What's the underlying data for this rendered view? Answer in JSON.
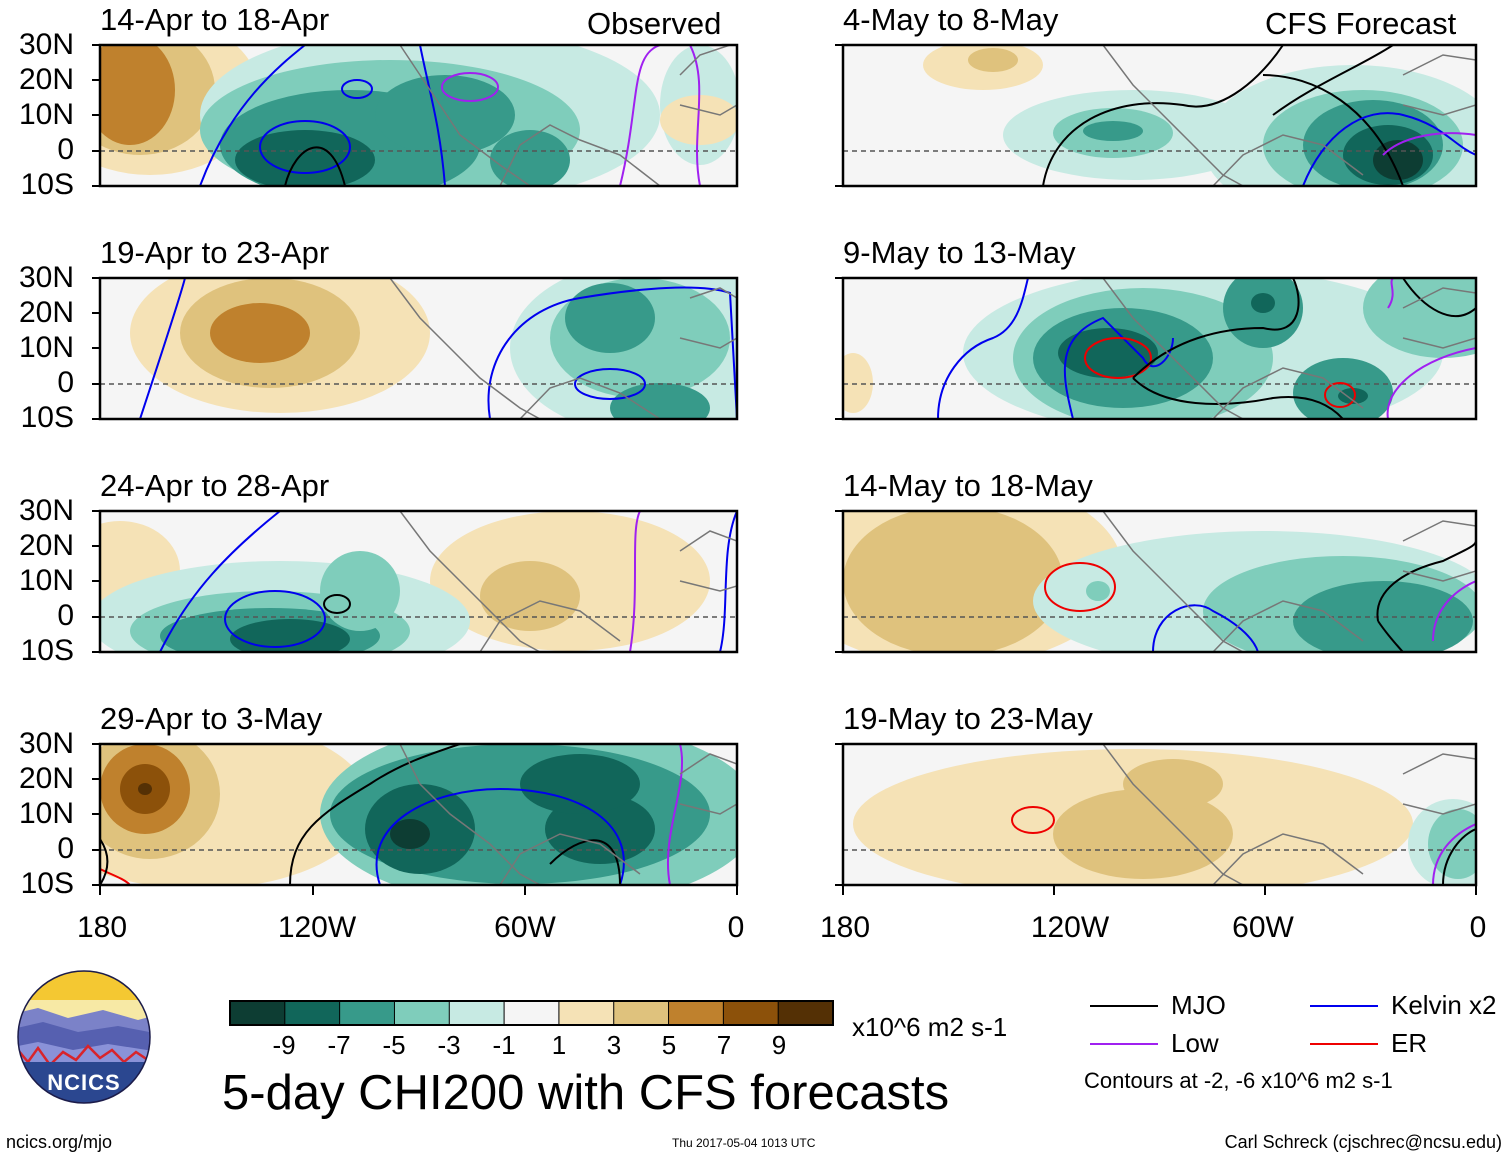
{
  "labels": {
    "observed": "Observed",
    "forecast": "CFS Forecast"
  },
  "left_panels": [
    {
      "title": "14-Apr to 18-Apr"
    },
    {
      "title": "19-Apr to 23-Apr"
    },
    {
      "title": "24-Apr to 28-Apr"
    },
    {
      "title": "29-Apr to 3-May"
    }
  ],
  "right_panels": [
    {
      "title": "4-May to 8-May"
    },
    {
      "title": "9-May to 13-May"
    },
    {
      "title": "14-May to 18-May"
    },
    {
      "title": "19-May to 23-May"
    }
  ],
  "lat_ticks": [
    "30N",
    "20N",
    "10N",
    "0",
    "10S"
  ],
  "lon_ticks": [
    "180",
    "120W",
    "60W",
    "0"
  ],
  "colorbar": {
    "colors": [
      "#0d3d33",
      "#11665a",
      "#379a8a",
      "#7fcdbb",
      "#c7eae3",
      "#f5f5f5",
      "#f5e2b6",
      "#dfc27d",
      "#bf812d",
      "#8c510a",
      "#543005"
    ],
    "tick_labels": [
      "-9",
      "-7",
      "-5",
      "-3",
      "-1",
      "1",
      "3",
      "5",
      "7",
      "9"
    ],
    "units": "x10^6 m2 s-1"
  },
  "main_title": "5-day CHI200 with CFS forecasts",
  "legend": {
    "items": [
      {
        "label": "MJO",
        "color": "#000000"
      },
      {
        "label": "Kelvin x2",
        "color": "#0000ee"
      },
      {
        "label": "Low",
        "color": "#a020f0"
      },
      {
        "label": "ER",
        "color": "#ee0000"
      }
    ],
    "note": "Contours at -2, -6 x10^6 m2 s-1"
  },
  "logo": {
    "text": "NCICS"
  },
  "footer": {
    "left": "ncics.org/mjo",
    "center": "Thu 2017-05-04 1013 UTC",
    "right": "Carl Schreck (cjschrec@ncsu.edu)"
  }
}
